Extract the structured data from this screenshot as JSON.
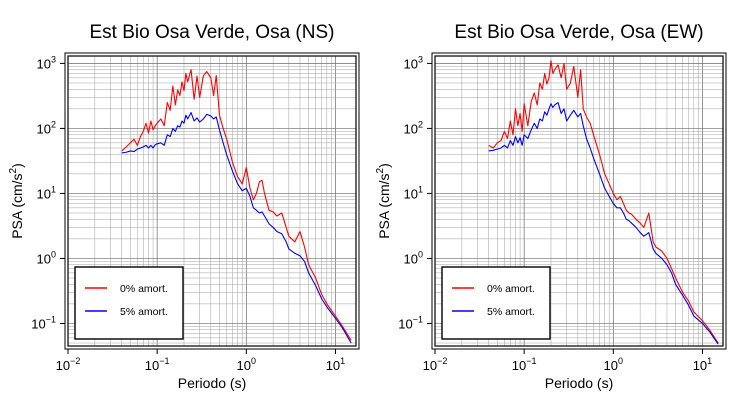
{
  "chart_data": [
    {
      "type": "line",
      "title": "Est Bio Osa Verde, Osa (NS)",
      "xlabel": "Periodo (s)",
      "ylabel": "PSA (cm/s",
      "ylabel_sup": "2",
      "ylabel_close": ")",
      "x_scale": "log",
      "y_scale": "log",
      "xlim": [
        0.01,
        17
      ],
      "ylim": [
        0.045,
        1300
      ],
      "grid": true,
      "legend_position": "bottom-left",
      "x_ticks": [
        {
          "base": "10",
          "exp": "−2"
        },
        {
          "base": "10",
          "exp": "−1"
        },
        {
          "base": "10",
          "exp": "0"
        },
        {
          "base": "10",
          "exp": "1"
        }
      ],
      "y_ticks": [
        {
          "base": "10",
          "exp": "−1"
        },
        {
          "base": "10",
          "exp": "0"
        },
        {
          "base": "10",
          "exp": "1"
        },
        {
          "base": "10",
          "exp": "2"
        },
        {
          "base": "10",
          "exp": "3"
        }
      ],
      "series": [
        {
          "name": "0% amort.",
          "color": "#ff0000",
          "x": [
            0.04,
            0.045,
            0.05,
            0.055,
            0.06,
            0.065,
            0.07,
            0.075,
            0.08,
            0.085,
            0.09,
            0.095,
            0.1,
            0.11,
            0.12,
            0.13,
            0.14,
            0.15,
            0.16,
            0.17,
            0.18,
            0.19,
            0.2,
            0.21,
            0.22,
            0.24,
            0.26,
            0.28,
            0.3,
            0.33,
            0.36,
            0.4,
            0.43,
            0.46,
            0.5,
            0.55,
            0.6,
            0.7,
            0.8,
            0.9,
            1.0,
            1.1,
            1.2,
            1.3,
            1.4,
            1.5,
            1.6,
            1.8,
            2.0,
            2.2,
            2.5,
            2.8,
            3.0,
            3.5,
            4.0,
            4.5,
            5.0,
            6.0,
            7.0,
            8.0,
            10.0,
            12.0,
            15.0
          ],
          "y": [
            45,
            52,
            60,
            68,
            55,
            75,
            90,
            120,
            85,
            130,
            95,
            110,
            120,
            140,
            110,
            250,
            190,
            450,
            230,
            390,
            320,
            520,
            380,
            700,
            520,
            800,
            280,
            640,
            300,
            650,
            750,
            600,
            320,
            650,
            160,
            100,
            70,
            30,
            18,
            14,
            25,
            12,
            8,
            10,
            15,
            16,
            10,
            5.5,
            5.2,
            4.5,
            5.0,
            3.0,
            2.2,
            1.8,
            2.6,
            1.5,
            0.8,
            0.5,
            0.28,
            0.2,
            0.13,
            0.09,
            0.055
          ]
        },
        {
          "name": "5% amort.",
          "color": "#0000ff",
          "x": [
            0.04,
            0.045,
            0.05,
            0.055,
            0.06,
            0.065,
            0.07,
            0.075,
            0.08,
            0.085,
            0.09,
            0.095,
            0.1,
            0.11,
            0.12,
            0.13,
            0.14,
            0.15,
            0.16,
            0.17,
            0.18,
            0.19,
            0.2,
            0.21,
            0.22,
            0.24,
            0.26,
            0.28,
            0.3,
            0.33,
            0.36,
            0.4,
            0.43,
            0.46,
            0.5,
            0.55,
            0.6,
            0.7,
            0.8,
            0.9,
            1.0,
            1.1,
            1.2,
            1.3,
            1.4,
            1.5,
            1.6,
            1.8,
            2.0,
            2.2,
            2.5,
            2.8,
            3.0,
            3.5,
            4.0,
            4.5,
            5.0,
            6.0,
            7.0,
            8.0,
            10.0,
            12.0,
            15.0
          ],
          "y": [
            42,
            43,
            45,
            44,
            48,
            50,
            52,
            55,
            50,
            55,
            50,
            56,
            58,
            60,
            55,
            80,
            75,
            100,
            90,
            110,
            105,
            130,
            120,
            160,
            140,
            175,
            130,
            145,
            125,
            140,
            165,
            155,
            140,
            150,
            95,
            60,
            40,
            22,
            14,
            11,
            12,
            9,
            6,
            5.5,
            5.0,
            5.2,
            4.5,
            3.4,
            3.0,
            2.6,
            2.4,
            1.8,
            1.4,
            1.2,
            1.1,
            0.9,
            0.6,
            0.38,
            0.24,
            0.18,
            0.12,
            0.085,
            0.05
          ]
        }
      ]
    },
    {
      "type": "line",
      "title": "Est Bio Osa Verde, Osa (EW)",
      "xlabel": "Periodo (s)",
      "ylabel": "PSA (cm/s",
      "ylabel_sup": "2",
      "ylabel_close": ")",
      "x_scale": "log",
      "y_scale": "log",
      "xlim": [
        0.01,
        17
      ],
      "ylim": [
        0.045,
        1300
      ],
      "grid": true,
      "legend_position": "bottom-left",
      "x_ticks": [
        {
          "base": "10",
          "exp": "−2"
        },
        {
          "base": "10",
          "exp": "−1"
        },
        {
          "base": "10",
          "exp": "0"
        },
        {
          "base": "10",
          "exp": "1"
        }
      ],
      "y_ticks": [
        {
          "base": "10",
          "exp": "−1"
        },
        {
          "base": "10",
          "exp": "0"
        },
        {
          "base": "10",
          "exp": "1"
        },
        {
          "base": "10",
          "exp": "2"
        },
        {
          "base": "10",
          "exp": "3"
        }
      ],
      "series": [
        {
          "name": "0% amort.",
          "color": "#ff0000",
          "x": [
            0.04,
            0.045,
            0.05,
            0.055,
            0.06,
            0.065,
            0.07,
            0.075,
            0.08,
            0.085,
            0.09,
            0.095,
            0.1,
            0.11,
            0.12,
            0.13,
            0.14,
            0.15,
            0.16,
            0.17,
            0.18,
            0.19,
            0.2,
            0.21,
            0.22,
            0.24,
            0.26,
            0.28,
            0.3,
            0.33,
            0.36,
            0.4,
            0.43,
            0.46,
            0.5,
            0.55,
            0.6,
            0.7,
            0.8,
            0.9,
            1.0,
            1.1,
            1.2,
            1.3,
            1.4,
            1.5,
            1.6,
            1.8,
            2.0,
            2.2,
            2.5,
            2.8,
            3.0,
            3.5,
            4.0,
            4.5,
            5.0,
            6.0,
            7.0,
            8.0,
            10.0,
            12.0,
            15.0
          ],
          "y": [
            55,
            50,
            60,
            65,
            90,
            70,
            130,
            80,
            200,
            110,
            170,
            90,
            240,
            110,
            260,
            350,
            230,
            500,
            400,
            700,
            480,
            600,
            1100,
            700,
            800,
            950,
            600,
            1000,
            400,
            500,
            900,
            300,
            800,
            200,
            150,
            120,
            80,
            40,
            20,
            14,
            10,
            8,
            9,
            7,
            5.5,
            5.0,
            4.8,
            4.0,
            3.5,
            3.0,
            5.0,
            1.8,
            1.5,
            1.3,
            1.0,
            0.7,
            0.5,
            0.3,
            0.22,
            0.15,
            0.11,
            0.08,
            0.05
          ]
        },
        {
          "name": "5% amort.",
          "color": "#0000ff",
          "x": [
            0.04,
            0.045,
            0.05,
            0.055,
            0.06,
            0.065,
            0.07,
            0.075,
            0.08,
            0.085,
            0.09,
            0.095,
            0.1,
            0.11,
            0.12,
            0.13,
            0.14,
            0.15,
            0.16,
            0.17,
            0.18,
            0.19,
            0.2,
            0.21,
            0.22,
            0.24,
            0.26,
            0.28,
            0.3,
            0.33,
            0.36,
            0.4,
            0.43,
            0.46,
            0.5,
            0.55,
            0.6,
            0.7,
            0.8,
            0.9,
            1.0,
            1.1,
            1.2,
            1.3,
            1.4,
            1.5,
            1.6,
            1.8,
            2.0,
            2.2,
            2.5,
            2.8,
            3.0,
            3.5,
            4.0,
            4.5,
            5.0,
            6.0,
            7.0,
            8.0,
            10.0,
            12.0,
            15.0
          ],
          "y": [
            45,
            46,
            48,
            50,
            55,
            50,
            65,
            55,
            75,
            60,
            72,
            55,
            80,
            70,
            95,
            120,
            100,
            140,
            130,
            180,
            160,
            200,
            240,
            210,
            230,
            250,
            170,
            200,
            130,
            160,
            190,
            150,
            170,
            110,
            70,
            50,
            35,
            20,
            12,
            9,
            7,
            6,
            6,
            5,
            4.0,
            3.8,
            3.5,
            3.0,
            2.5,
            2.2,
            2.5,
            1.4,
            1.2,
            1.0,
            0.8,
            0.6,
            0.4,
            0.27,
            0.19,
            0.13,
            0.1,
            0.075,
            0.048
          ]
        }
      ]
    }
  ]
}
